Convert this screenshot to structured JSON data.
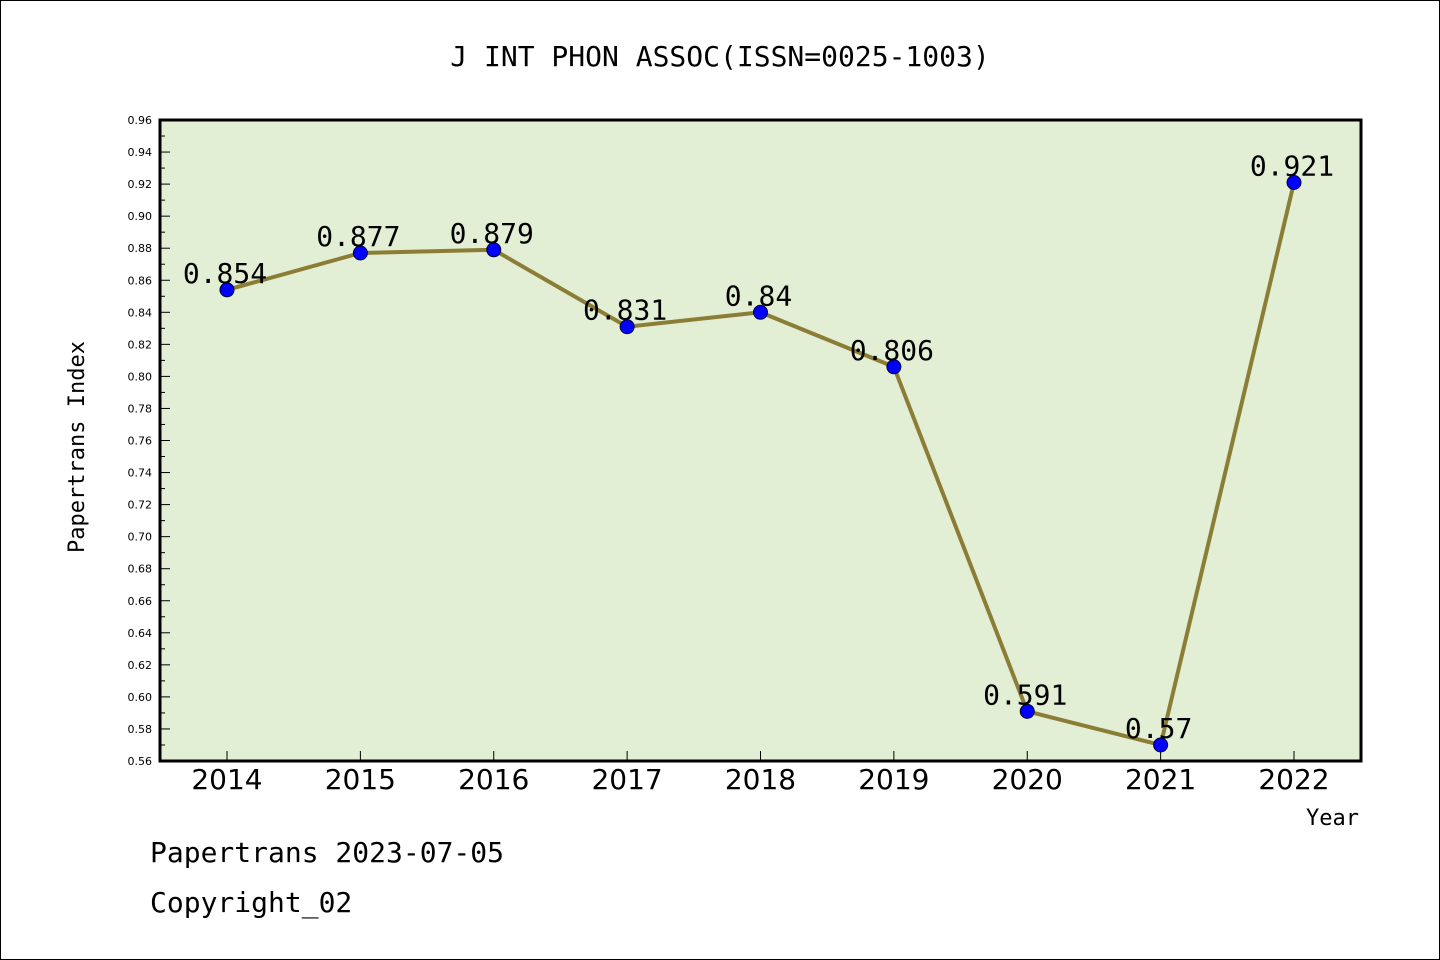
{
  "chart_data": {
    "type": "line",
    "title": "J INT PHON ASSOC(ISSN=0025-1003)",
    "xlabel": "Year",
    "ylabel": "Papertrans Index",
    "categories": [
      "2014",
      "2015",
      "2016",
      "2017",
      "2018",
      "2019",
      "2020",
      "2021",
      "2022"
    ],
    "series": [
      {
        "values": [
          0.854,
          0.877,
          0.879,
          0.831,
          0.84,
          0.806,
          0.591,
          0.57,
          0.921
        ],
        "labels": [
          "0.854",
          "0.877",
          "0.879",
          "0.831",
          "0.84",
          "0.806",
          "0.591",
          "0.57",
          "0.921"
        ]
      }
    ],
    "ylim": [
      0.56,
      0.96
    ],
    "yticks": [
      "0.56",
      "0.58",
      "0.60",
      "0.62",
      "0.64",
      "0.66",
      "0.68",
      "0.70",
      "0.72",
      "0.74",
      "0.76",
      "0.78",
      "0.80",
      "0.82",
      "0.84",
      "0.86",
      "0.88",
      "0.90",
      "0.92",
      "0.94",
      "0.96"
    ],
    "grid": false,
    "colors": {
      "plot_background": "#e2efd5",
      "line": "#8b7d35",
      "marker": "#0000ff"
    }
  },
  "footer": {
    "line1": "Papertrans 2023-07-05",
    "line2": "Copyright_02"
  }
}
